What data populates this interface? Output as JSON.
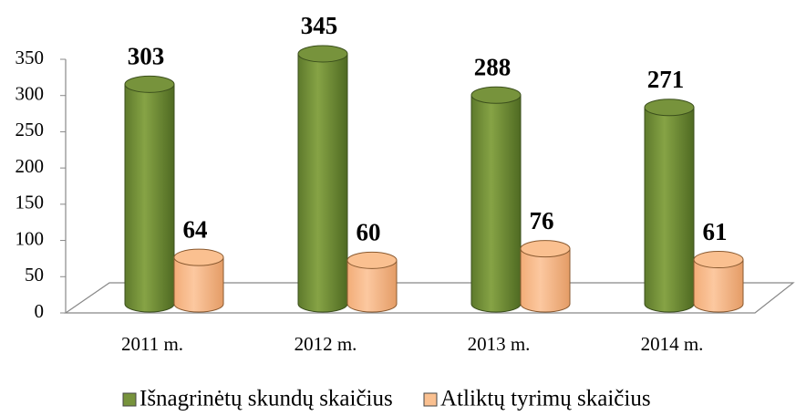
{
  "chart_data": {
    "type": "bar3d",
    "categories": [
      "2011 m.",
      "2012 m.",
      "2013 m.",
      "2014 m."
    ],
    "series": [
      {
        "name": "Išnagrinėtų skundų skaičius",
        "color": "#77933c",
        "values": [
          303,
          345,
          288,
          271
        ]
      },
      {
        "name": "Atliktų tyrimų skaičius",
        "color": "#fac090",
        "values": [
          64,
          60,
          76,
          61
        ]
      }
    ],
    "ylim": [
      0,
      350
    ],
    "yticks": [
      0,
      50,
      100,
      150,
      200,
      250,
      300,
      350
    ],
    "grid": false,
    "legend": "bottom"
  }
}
